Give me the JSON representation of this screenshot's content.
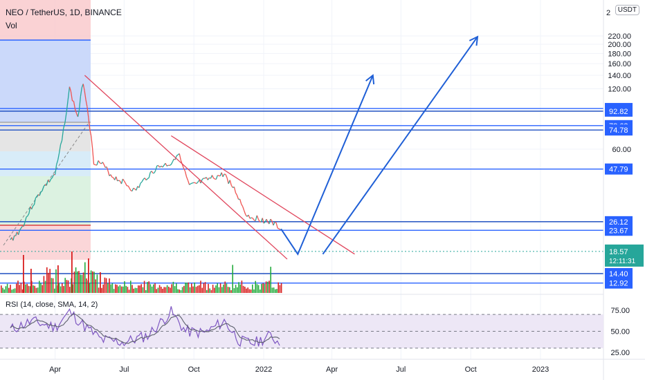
{
  "header": {
    "symbol_line": "NEO / TetherUS, 1D, BINANCE",
    "vol_label": "Vol",
    "rsi_label": "RSI (14, close, SMA, 14, 2)",
    "currency_button": "USDT",
    "axis_top_clip": "2"
  },
  "colors": {
    "up": "#26a69a",
    "down": "#ef5350",
    "vol_up": "#22ab3c",
    "vol_down": "#d81e1e",
    "level_line": "#2962ff",
    "level_line_alt": "#1e4fc1",
    "trend_line": "#e0455c",
    "arrow": "#1f5fd6",
    "rsi_line": "#7e57c2",
    "rsi_band": "#ede7f6",
    "price_label_bg": "#2962ff",
    "current_price_bg": "#26a69a"
  },
  "chart_data": [
    {
      "type": "line",
      "title": "NEO / TetherUS, 1D, BINANCE",
      "x_ticks": [
        "Apr",
        "Jul",
        "Oct",
        "2022",
        "Apr",
        "Jul",
        "Oct",
        "2023"
      ],
      "y_ticks": [
        220,
        200,
        180,
        160,
        140,
        120,
        60
      ],
      "y_tick_labels": [
        "220.00",
        "200.00",
        "180.00",
        "160.00",
        "140.00",
        "120.00",
        "60.00"
      ],
      "y_scale": "log",
      "price_series": {
        "x": [
          "2021-02-01",
          "2021-02-15",
          "2021-03-01",
          "2021-03-15",
          "2021-04-01",
          "2021-04-10",
          "2021-04-20",
          "2021-05-01",
          "2021-05-08",
          "2021-05-15",
          "2021-05-22",
          "2021-06-01",
          "2021-06-15",
          "2021-07-01",
          "2021-07-15",
          "2021-08-01",
          "2021-08-15",
          "2021-09-01",
          "2021-09-10",
          "2021-09-25",
          "2021-10-10",
          "2021-10-25",
          "2021-11-10",
          "2021-11-25",
          "2021-12-10",
          "2021-12-25",
          "2022-01-10",
          "2022-01-25"
        ],
        "close": [
          21,
          24,
          31,
          38,
          45,
          66,
          120,
          86,
          131,
          89,
          52,
          51,
          44,
          41,
          37,
          44,
          49,
          51,
          58,
          39,
          41,
          43,
          45,
          37,
          28,
          27,
          26,
          24
        ]
      },
      "horizontal_levels": [
        95.69,
        92.82,
        78.63,
        74.78,
        47.79,
        26.12,
        23.67,
        14.4,
        12.92
      ],
      "horizontal_level_labels": [
        "95.69",
        "92.82",
        "78.63",
        "74.78",
        "47.79",
        "26.12",
        "23.67",
        "14.40",
        "12.92"
      ],
      "current_price": "18.57",
      "countdown": "12:11:31",
      "trend_lines": [
        {
          "from": {
            "x": "2021-05-10",
            "y": 140
          },
          "to": {
            "x": "2022-02-01",
            "y": 17
          }
        },
        {
          "from": {
            "x": "2021-09-01",
            "y": 70
          },
          "to": {
            "x": "2022-05-01",
            "y": 18
          }
        }
      ],
      "projection_arrows": [
        {
          "path": [
            {
              "x": "2022-01-24",
              "y": 24
            },
            {
              "x": "2022-02-15",
              "y": 18
            },
            {
              "x": "2022-05-25",
              "y": 140
            }
          ]
        },
        {
          "path": [
            {
              "x": "2022-03-20",
              "y": 18
            },
            {
              "x": "2022-10-10",
              "y": 218
            }
          ]
        }
      ]
    },
    {
      "type": "bar",
      "title": "Vol",
      "note": "volume histogram, green = up day, red = down day"
    },
    {
      "type": "line",
      "title": "RSI (14, close, SMA, 14, 2)",
      "y_ticks": [
        75,
        50,
        25
      ],
      "y_tick_labels": [
        "75.00",
        "50.00",
        "25.00"
      ],
      "bands": {
        "upper": 70,
        "middle": 50,
        "lower": 30
      },
      "series": [
        {
          "x": [
            "2021-02-01",
            "2021-03-01",
            "2021-04-01",
            "2021-04-20",
            "2021-05-10",
            "2021-06-01",
            "2021-07-01",
            "2021-08-01",
            "2021-09-01",
            "2021-09-20",
            "2021-10-15",
            "2021-11-10",
            "2021-12-01",
            "2021-12-20",
            "2022-01-10",
            "2022-01-25"
          ],
          "values": [
            52,
            62,
            55,
            73,
            56,
            40,
            37,
            45,
            73,
            50,
            48,
            62,
            38,
            36,
            45,
            34
          ]
        }
      ]
    }
  ]
}
